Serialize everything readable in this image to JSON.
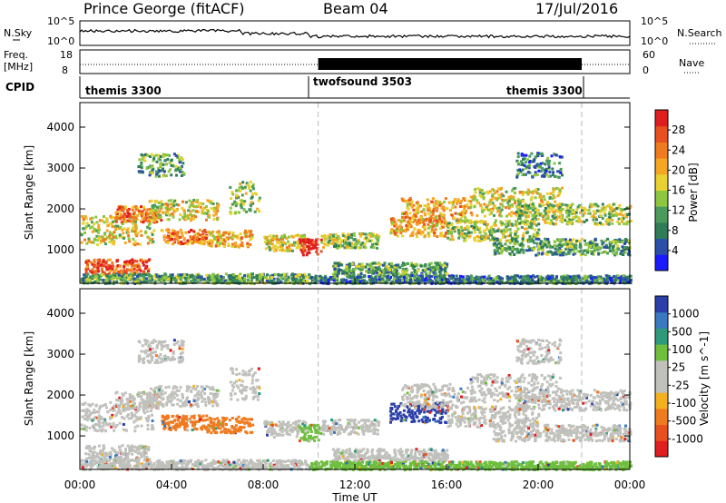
{
  "header": {
    "station": "Prince George (fitACF)",
    "beam": "Beam 04",
    "date": "17/Jul/2016"
  },
  "top_panel": {
    "left_label": "N.Sky",
    "right_label": "N.Search",
    "left_ticks": [
      "10^5",
      "10^0"
    ],
    "right_ticks": [
      "10^5",
      "10^0"
    ]
  },
  "freq_panel": {
    "left_label_line1": "Freq.",
    "left_label_line2": "[MHz]",
    "left_ticks": [
      "18",
      "8"
    ],
    "right_label": "Nave",
    "right_ticks": [
      "60",
      "0"
    ]
  },
  "cpid": {
    "label": "CPID",
    "modes": [
      "themis 3300",
      "twofsound 3503",
      "themis 3300"
    ]
  },
  "colors": {
    "power": [
      "#1a1aff",
      "#2b4fa8",
      "#2e7d58",
      "#4a9a5c",
      "#8dc63f",
      "#e8d130",
      "#f5a623",
      "#f07a1e",
      "#e8501f",
      "#e01e1e"
    ],
    "velocity": [
      "#2b3fa8",
      "#3a78c0",
      "#2e9a7a",
      "#6fbf3f",
      "#c0c0bc",
      "#c0c0bc",
      "#f5b020",
      "#f07a1e",
      "#e8501f",
      "#e01e1e"
    ],
    "ground": "#c0c0bc"
  },
  "chart_data": [
    {
      "type": "heatmap",
      "title": "Power",
      "ylabel": "Slant Range [km]",
      "xlabel": "Time UT",
      "x_ticks": [
        "00:00",
        "04:00",
        "08:00",
        "12:00",
        "16:00",
        "20:00",
        "00:00"
      ],
      "y_ticks": [
        "1000",
        "2000",
        "3000",
        "4000"
      ],
      "ylim": [
        180,
        4600
      ],
      "xlim_hours": [
        0,
        24
      ],
      "colorbar_label": "Power [dB]",
      "colorbar_ticks": [
        "4",
        "8",
        "12",
        "16",
        "20",
        "24",
        "28"
      ],
      "value_range": [
        0,
        30
      ]
    },
    {
      "type": "heatmap",
      "title": "Velocity",
      "ylabel": "Slant Range [km]",
      "xlabel": "Time UT",
      "x_ticks": [
        "00:00",
        "04:00",
        "08:00",
        "12:00",
        "16:00",
        "20:00",
        "00:00"
      ],
      "y_ticks": [
        "1000",
        "2000",
        "3000",
        "4000"
      ],
      "ylim": [
        180,
        4600
      ],
      "xlim_hours": [
        0,
        24
      ],
      "colorbar_label": "Velocity [m s^-1]",
      "colorbar_ticks": [
        "1000",
        "500",
        "100",
        "25",
        "-25",
        "-100",
        "-500",
        "-1000"
      ],
      "value_range": [
        -1000,
        1000
      ]
    }
  ]
}
